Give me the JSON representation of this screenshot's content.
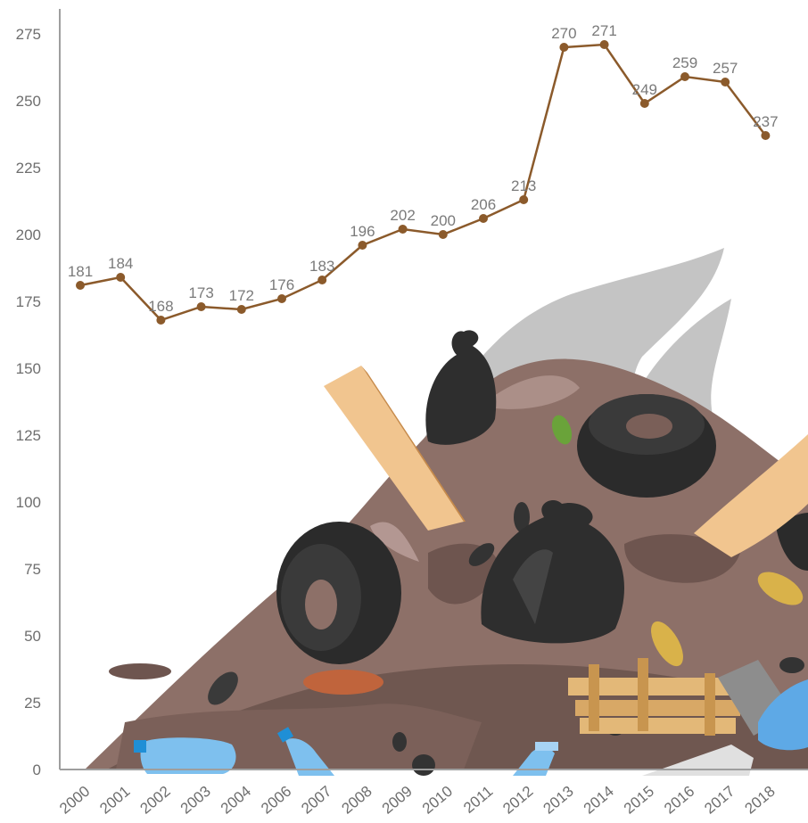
{
  "chart_data": {
    "type": "line",
    "title": "",
    "xlabel": "",
    "ylabel": "",
    "ylim": [
      0,
      275
    ],
    "yticks": [
      0,
      25,
      50,
      75,
      100,
      125,
      150,
      175,
      200,
      225,
      250,
      275
    ],
    "grid": false,
    "legend": "none",
    "categories": [
      "2000",
      "2001",
      "2002",
      "2003",
      "2004",
      "2006",
      "2007",
      "2008",
      "2009",
      "2010",
      "2011",
      "2012",
      "2013",
      "2014",
      "2015",
      "2016",
      "2017",
      "2018"
    ],
    "series": [
      {
        "values": [
          181,
          184,
          168,
          173,
          172,
          176,
          183,
          196,
          202,
          200,
          206,
          213,
          270,
          271,
          249,
          259,
          257,
          237
        ]
      }
    ],
    "colors": {
      "line": "#8b5a2b",
      "axis": "#9e9e9e",
      "text": "#6e6e6e"
    }
  }
}
